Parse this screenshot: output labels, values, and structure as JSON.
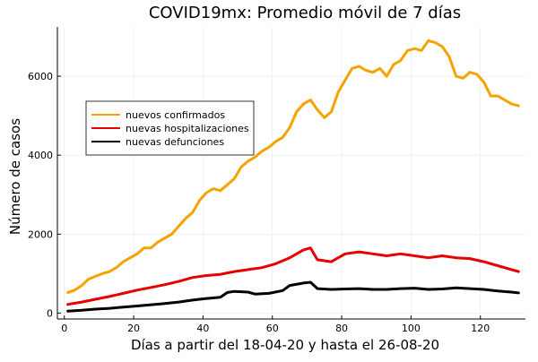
{
  "chart_data": {
    "type": "line",
    "title": "COVID19mx: Promedio móvil de 7 días",
    "xlabel": "Días a partir del 18-04-20 y hasta el 26-08-20",
    "ylabel": "Número de casos",
    "xlim": [
      -2,
      133
    ],
    "ylim": [
      -150,
      7250
    ],
    "x_ticks": [
      0,
      20,
      40,
      60,
      80,
      100,
      120
    ],
    "y_ticks": [
      0,
      2000,
      4000,
      6000
    ],
    "grid": true,
    "legend_position": "upper-left",
    "series": [
      {
        "name": "nuevos confirmados",
        "color": "#f4a300",
        "points": [
          [
            1,
            520
          ],
          [
            3,
            580
          ],
          [
            5,
            700
          ],
          [
            7,
            860
          ],
          [
            9,
            930
          ],
          [
            11,
            1000
          ],
          [
            13,
            1050
          ],
          [
            15,
            1150
          ],
          [
            17,
            1300
          ],
          [
            19,
            1400
          ],
          [
            21,
            1500
          ],
          [
            23,
            1650
          ],
          [
            25,
            1650
          ],
          [
            27,
            1800
          ],
          [
            29,
            1900
          ],
          [
            31,
            2000
          ],
          [
            33,
            2200
          ],
          [
            35,
            2400
          ],
          [
            37,
            2550
          ],
          [
            39,
            2850
          ],
          [
            41,
            3050
          ],
          [
            43,
            3150
          ],
          [
            45,
            3100
          ],
          [
            47,
            3250
          ],
          [
            49,
            3400
          ],
          [
            51,
            3700
          ],
          [
            53,
            3850
          ],
          [
            55,
            3950
          ],
          [
            57,
            4100
          ],
          [
            59,
            4200
          ],
          [
            61,
            4350
          ],
          [
            63,
            4450
          ],
          [
            65,
            4700
          ],
          [
            67,
            5100
          ],
          [
            69,
            5300
          ],
          [
            71,
            5400
          ],
          [
            73,
            5150
          ],
          [
            75,
            4950
          ],
          [
            77,
            5100
          ],
          [
            79,
            5600
          ],
          [
            81,
            5900
          ],
          [
            83,
            6200
          ],
          [
            85,
            6250
          ],
          [
            87,
            6150
          ],
          [
            89,
            6100
          ],
          [
            91,
            6200
          ],
          [
            93,
            6000
          ],
          [
            95,
            6300
          ],
          [
            97,
            6400
          ],
          [
            99,
            6650
          ],
          [
            101,
            6700
          ],
          [
            103,
            6650
          ],
          [
            105,
            6900
          ],
          [
            107,
            6850
          ],
          [
            109,
            6750
          ],
          [
            111,
            6500
          ],
          [
            113,
            6000
          ],
          [
            115,
            5950
          ],
          [
            117,
            6100
          ],
          [
            119,
            6050
          ],
          [
            121,
            5850
          ],
          [
            123,
            5500
          ],
          [
            125,
            5500
          ],
          [
            127,
            5400
          ],
          [
            129,
            5300
          ],
          [
            131,
            5250
          ]
        ]
      },
      {
        "name": "nuevas hospitalizaciones",
        "color": "#e60000",
        "points": [
          [
            1,
            220
          ],
          [
            5,
            280
          ],
          [
            9,
            350
          ],
          [
            13,
            420
          ],
          [
            17,
            500
          ],
          [
            21,
            580
          ],
          [
            25,
            650
          ],
          [
            29,
            720
          ],
          [
            33,
            800
          ],
          [
            37,
            900
          ],
          [
            41,
            950
          ],
          [
            45,
            980
          ],
          [
            49,
            1050
          ],
          [
            53,
            1100
          ],
          [
            57,
            1150
          ],
          [
            61,
            1250
          ],
          [
            65,
            1400
          ],
          [
            69,
            1600
          ],
          [
            71,
            1650
          ],
          [
            73,
            1350
          ],
          [
            77,
            1300
          ],
          [
            81,
            1500
          ],
          [
            85,
            1550
          ],
          [
            89,
            1500
          ],
          [
            93,
            1450
          ],
          [
            97,
            1500
          ],
          [
            101,
            1450
          ],
          [
            105,
            1400
          ],
          [
            109,
            1450
          ],
          [
            113,
            1400
          ],
          [
            117,
            1380
          ],
          [
            121,
            1300
          ],
          [
            125,
            1200
          ],
          [
            129,
            1100
          ],
          [
            131,
            1050
          ]
        ]
      },
      {
        "name": "nuevas defunciones",
        "color": "#000000",
        "points": [
          [
            1,
            50
          ],
          [
            5,
            70
          ],
          [
            9,
            100
          ],
          [
            13,
            120
          ],
          [
            17,
            150
          ],
          [
            21,
            180
          ],
          [
            25,
            210
          ],
          [
            29,
            240
          ],
          [
            33,
            280
          ],
          [
            37,
            330
          ],
          [
            41,
            370
          ],
          [
            45,
            400
          ],
          [
            47,
            520
          ],
          [
            49,
            550
          ],
          [
            53,
            530
          ],
          [
            55,
            480
          ],
          [
            59,
            500
          ],
          [
            63,
            570
          ],
          [
            65,
            700
          ],
          [
            69,
            760
          ],
          [
            71,
            780
          ],
          [
            73,
            620
          ],
          [
            77,
            600
          ],
          [
            81,
            610
          ],
          [
            85,
            620
          ],
          [
            89,
            600
          ],
          [
            93,
            600
          ],
          [
            97,
            620
          ],
          [
            101,
            630
          ],
          [
            105,
            600
          ],
          [
            109,
            610
          ],
          [
            113,
            640
          ],
          [
            117,
            620
          ],
          [
            121,
            600
          ],
          [
            125,
            560
          ],
          [
            129,
            530
          ],
          [
            131,
            510
          ]
        ]
      }
    ]
  }
}
